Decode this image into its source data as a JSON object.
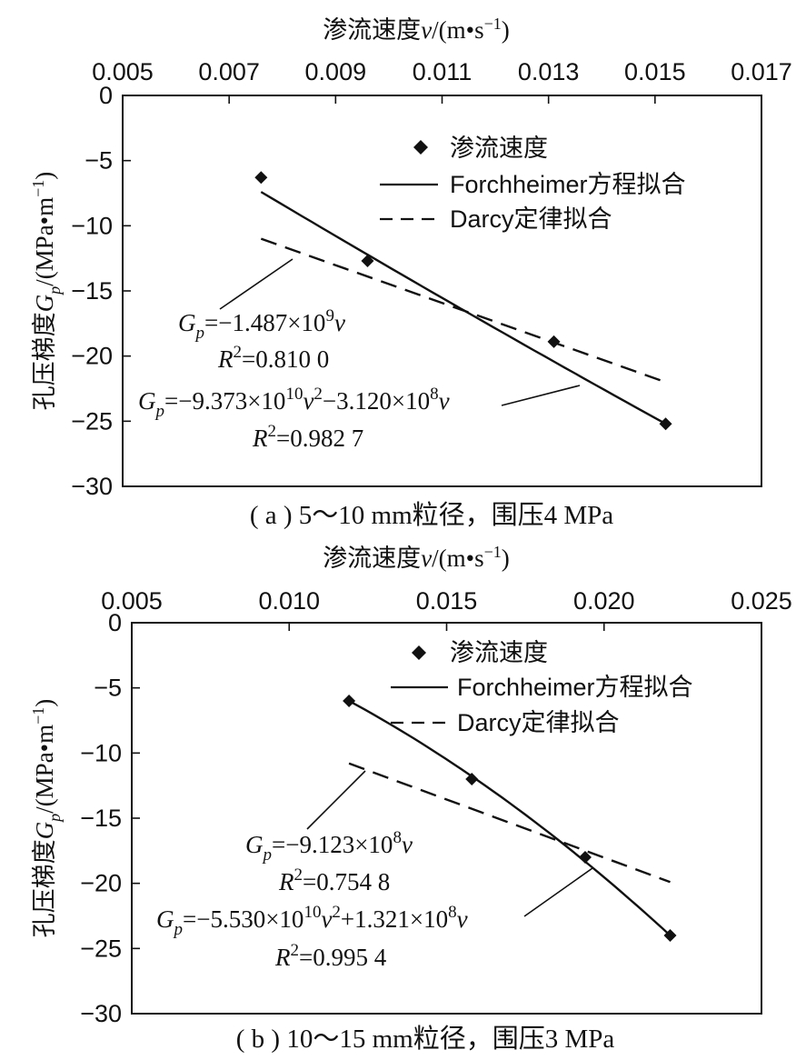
{
  "chart_data": [
    {
      "type": "scatter",
      "caption": "( a ) 5～10 mm粒径，围压4 MPa",
      "xlabel": "渗流速度v/(m•s⁻¹)",
      "ylabel": "孔压梯度Gp/(MPa•m⁻¹)",
      "x_axis_position": "top",
      "xlim": [
        0.005,
        0.017
      ],
      "ylim": [
        -30,
        0
      ],
      "xticks": [
        "0.005",
        "0.007",
        "0.009",
        "0.011",
        "0.013",
        "0.015",
        "0.017"
      ],
      "yticks": [
        "0",
        "−5",
        "−10",
        "−15",
        "−20",
        "−25",
        "−30"
      ],
      "legend": [
        "渗流速度",
        "Forchheimer方程拟合",
        "Darcy定律拟合"
      ],
      "legend_position": "top-right",
      "series": [
        {
          "name": "渗流速度",
          "style": "markers",
          "x": [
            0.0076,
            0.0096,
            0.0131,
            0.0152
          ],
          "y": [
            -6.3,
            -12.7,
            -18.9,
            -25.2
          ]
        },
        {
          "name": "Forchheimer方程拟合",
          "style": "solid",
          "x": [
            0.0076,
            0.0152
          ],
          "y": [
            -7.4,
            -25.2
          ]
        },
        {
          "name": "Darcy定律拟合",
          "style": "dashed",
          "x": [
            0.0076,
            0.0152
          ],
          "y": [
            -11.0,
            -22.0
          ]
        }
      ],
      "annotations": {
        "darcy_eq": {
          "lhs": "G",
          "sub": "p",
          "text": "=−1.487×10",
          "sup": "9",
          "var": "v"
        },
        "darcy_r2": {
          "r": "R",
          "sup": "2",
          "text": "=0.810 0"
        },
        "forch_eq": {
          "lhs": "G",
          "sub": "p",
          "t1": "=−9.373×10",
          "sup1": "10",
          "v1": "v",
          "sup2": "2",
          "t2": "−3.120×10",
          "sup3": "8",
          "v2": "v"
        },
        "forch_r2": {
          "r": "R",
          "sup": "2",
          "text": "=0.982 7"
        }
      }
    },
    {
      "type": "scatter",
      "caption": "( b ) 10～15 mm粒径，围压3 MPa",
      "xlabel": "渗流速度v/(m•s⁻¹)",
      "ylabel": "孔压梯度Gp/(MPa•m⁻¹)",
      "x_axis_position": "top",
      "xlim": [
        0.005,
        0.025
      ],
      "ylim": [
        -30,
        0
      ],
      "xticks": [
        "0.005",
        "0.010",
        "0.015",
        "0.020",
        "0.025"
      ],
      "yticks": [
        "0",
        "−5",
        "−10",
        "−15",
        "−20",
        "−25",
        "−30"
      ],
      "legend": [
        "渗流速度",
        "Forchheimer方程拟合",
        "Darcy定律拟合"
      ],
      "legend_position": "top-right",
      "series": [
        {
          "name": "渗流速度",
          "style": "markers",
          "x": [
            0.0119,
            0.0158,
            0.0194,
            0.0221
          ],
          "y": [
            -6.0,
            -12.0,
            -18.0,
            -24.0
          ]
        },
        {
          "name": "Forchheimer方程拟合",
          "style": "solid",
          "x": [
            0.0119,
            0.0221
          ],
          "y": [
            -6.0,
            -24.0
          ]
        },
        {
          "name": "Darcy定律拟合",
          "style": "dashed",
          "x": [
            0.0119,
            0.0221
          ],
          "y": [
            -10.8,
            -19.9
          ]
        }
      ],
      "annotations": {
        "darcy_eq": {
          "lhs": "G",
          "sub": "p",
          "text": "=−9.123×10",
          "sup": "8",
          "var": "v"
        },
        "darcy_r2": {
          "r": "R",
          "sup": "2",
          "text": "=0.754 8"
        },
        "forch_eq": {
          "lhs": "G",
          "sub": "p",
          "t1": "=−5.530×10",
          "sup1": "10",
          "v1": "v",
          "sup2": "2",
          "t2": "+1.321×10",
          "sup3": "8",
          "v2": "v"
        },
        "forch_r2": {
          "r": "R",
          "sup": "2",
          "text": "=0.995 4"
        }
      }
    }
  ],
  "labels": {
    "x_title_main": "渗流速度",
    "x_title_var": "v",
    "x_title_unit": "/(m•s",
    "x_title_sup": "−1",
    "x_title_close": ")",
    "y_title_main": "孔压梯度",
    "y_title_var": "G",
    "y_title_sub": "p",
    "y_title_unit": "/(MPa•m",
    "y_title_sup": "−1",
    "y_title_close": ")"
  }
}
